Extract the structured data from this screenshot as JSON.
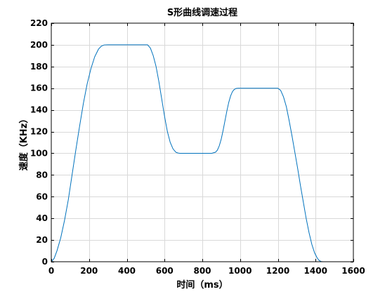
{
  "chart_data": {
    "type": "line",
    "title": "S形曲线调速过程",
    "xlabel": "时间（ms）",
    "ylabel": "速度（KHz）",
    "xlim": [
      0,
      1600
    ],
    "ylim": [
      0,
      220
    ],
    "xticks": [
      0,
      200,
      400,
      600,
      800,
      1000,
      1200,
      1400,
      1600
    ],
    "yticks": [
      0,
      20,
      40,
      60,
      80,
      100,
      120,
      140,
      160,
      180,
      200,
      220
    ],
    "grid": true,
    "legend": "none",
    "colors": {
      "line": "#0072BD",
      "grid": "#d9d9d9",
      "axis": "#000000"
    },
    "series": [
      {
        "x": [
          0,
          15,
          30,
          50,
          70,
          90,
          110,
          130,
          150,
          170,
          190,
          210,
          230,
          250,
          265,
          280,
          300,
          350,
          400,
          450,
          510,
          525,
          540,
          555,
          570,
          585,
          600,
          615,
          630,
          645,
          660,
          670,
          680,
          700,
          750,
          800,
          850,
          870,
          880,
          890,
          900,
          910,
          920,
          930,
          940,
          950,
          960,
          970,
          980,
          990,
          1000,
          1050,
          1100,
          1150,
          1200,
          1215,
          1230,
          1245,
          1260,
          1275,
          1290,
          1305,
          1320,
          1335,
          1350,
          1365,
          1380,
          1395,
          1410,
          1420,
          1430,
          1440
        ],
        "y": [
          0,
          3,
          10,
          22,
          38,
          57,
          80,
          103,
          125,
          146,
          164,
          178,
          189,
          196,
          198.8,
          199.9,
          200,
          200,
          200,
          200,
          200,
          197,
          190,
          180,
          166,
          150,
          134,
          120,
          110,
          104,
          101,
          100.3,
          100,
          100,
          100,
          100,
          100,
          101,
          103,
          107,
          113,
          121,
          130,
          139,
          147,
          153,
          157,
          159,
          159.8,
          160,
          160,
          160,
          160,
          160,
          160,
          158,
          152,
          143,
          130,
          116,
          101,
          86,
          70,
          55,
          40,
          27,
          16,
          8,
          3,
          1,
          0.2,
          0
        ]
      }
    ]
  }
}
